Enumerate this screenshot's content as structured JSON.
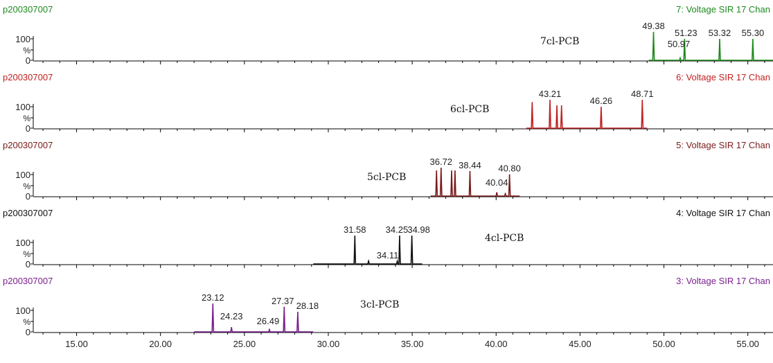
{
  "chart_data": {
    "type": "line",
    "x_axis": {
      "range": [
        12.5,
        56.5
      ],
      "tick_labels": [
        "15.00",
        "20.00",
        "25.00",
        "30.00",
        "35.00",
        "40.00",
        "45.00",
        "50.00",
        "55.00"
      ],
      "ticks": [
        15,
        20,
        25,
        30,
        35,
        40,
        45,
        50,
        55
      ]
    },
    "y_axis": {
      "range": [
        0,
        100
      ],
      "tick_labels": [
        "100",
        "%",
        "0"
      ]
    },
    "grid": false,
    "panels": [
      {
        "sample": "p200307007",
        "channel": "7: Voltage SIR 17 Chan",
        "compound": "7cl-PCB",
        "color": "#1e8a1e",
        "trace_range": [
          49.1,
          56.5
        ],
        "peaks": [
          {
            "x": 49.38,
            "y": 100,
            "label": "49.38"
          },
          {
            "x": 50.97,
            "y": 8,
            "label": "50.97"
          },
          {
            "x": 51.23,
            "y": 75,
            "label": "51.23"
          },
          {
            "x": 53.32,
            "y": 75,
            "label": "53.32"
          },
          {
            "x": 55.3,
            "y": 75,
            "label": "55.30"
          }
        ]
      },
      {
        "sample": "p200307007",
        "channel": "6: Voltage SIR 17 Chan",
        "compound": "6cl-PCB",
        "color": "#c02020",
        "trace_range": [
          41.8,
          49.0
        ],
        "peaks": [
          {
            "x": 42.15,
            "y": 92,
            "label": ""
          },
          {
            "x": 43.21,
            "y": 100,
            "label": "43.21"
          },
          {
            "x": 43.62,
            "y": 80,
            "label": ""
          },
          {
            "x": 43.9,
            "y": 80,
            "label": ""
          },
          {
            "x": 46.26,
            "y": 75,
            "label": "46.26"
          },
          {
            "x": 48.71,
            "y": 100,
            "label": "48.71"
          }
        ]
      },
      {
        "sample": "p200307007",
        "channel": "5: Voltage SIR 17 Chan",
        "compound": "5cl-PCB",
        "color": "#7a1a1a",
        "trace_range": [
          36.1,
          41.4
        ],
        "peaks": [
          {
            "x": 36.45,
            "y": 90,
            "label": ""
          },
          {
            "x": 36.72,
            "y": 100,
            "label": "36.72"
          },
          {
            "x": 37.35,
            "y": 90,
            "label": ""
          },
          {
            "x": 37.55,
            "y": 90,
            "label": ""
          },
          {
            "x": 38.44,
            "y": 88,
            "label": "38.44"
          },
          {
            "x": 40.04,
            "y": 12,
            "label": "40.04"
          },
          {
            "x": 40.55,
            "y": 8,
            "label": ""
          },
          {
            "x": 40.8,
            "y": 76,
            "label": "40.80"
          }
        ]
      },
      {
        "sample": "p200307007",
        "channel": "4: Voltage SIR 17 Chan",
        "compound": "4cl-PCB",
        "color": "#111111",
        "trace_range": [
          29.1,
          35.6
        ],
        "peaks": [
          {
            "x": 31.58,
            "y": 100,
            "label": "31.58"
          },
          {
            "x": 32.4,
            "y": 10,
            "label": ""
          },
          {
            "x": 34.11,
            "y": 10,
            "label": "34.11"
          },
          {
            "x": 34.25,
            "y": 100,
            "label": "34.25"
          },
          {
            "x": 34.98,
            "y": 100,
            "label": "34.98"
          }
        ]
      },
      {
        "sample": "p200307007",
        "channel": "3: Voltage SIR 17 Chan",
        "compound": "3cl-PCB",
        "color": "#7a1f8f",
        "trace_range": [
          22.0,
          29.1
        ],
        "peaks": [
          {
            "x": 23.12,
            "y": 100,
            "label": "23.12"
          },
          {
            "x": 24.23,
            "y": 15,
            "label": "24.23"
          },
          {
            "x": 26.49,
            "y": 8,
            "label": "26.49"
          },
          {
            "x": 27.37,
            "y": 88,
            "label": "27.37"
          },
          {
            "x": 28.18,
            "y": 70,
            "label": "28.18"
          }
        ]
      }
    ]
  }
}
